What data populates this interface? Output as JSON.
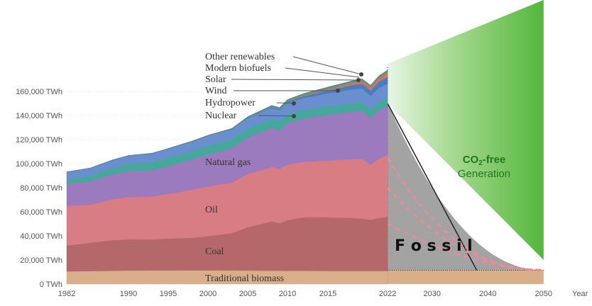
{
  "chart_data": {
    "type": "area",
    "xlabel": "Year",
    "ylim": [
      0,
      180000
    ],
    "y_ticks": [
      {
        "value": 0,
        "label": "0 TWh"
      },
      {
        "value": 20000,
        "label": "20,000 TWh"
      },
      {
        "value": 40000,
        "label": "40,000 TWh"
      },
      {
        "value": 60000,
        "label": "60,000 TWh"
      },
      {
        "value": 80000,
        "label": "80,000 TWh"
      },
      {
        "value": 100000,
        "label": "100,000 TWh"
      },
      {
        "value": 120000,
        "label": "120,000 TWh"
      },
      {
        "value": 140000,
        "label": "140,000 TWh"
      },
      {
        "value": 160000,
        "label": "160,000 TWh"
      }
    ],
    "x_ticks_history": [
      "1982",
      "1990",
      "1995",
      "2000",
      "2005",
      "2010",
      "2015",
      "2022"
    ],
    "x_ticks_future": [
      "2030",
      "2040",
      "2050"
    ],
    "x": [
      1982,
      1985,
      1988,
      1990,
      1993,
      1995,
      1998,
      2000,
      2003,
      2005,
      2008,
      2009,
      2010,
      2012,
      2015,
      2018,
      2019,
      2020,
      2021,
      2022
    ],
    "series": [
      {
        "name": "Traditional biomass",
        "values": [
          10500,
          10800,
          11000,
          11200,
          11300,
          11300,
          11400,
          11400,
          11300,
          11200,
          11100,
          11100,
          11000,
          11000,
          10900,
          10900,
          10900,
          10900,
          10900,
          10900
        ]
      },
      {
        "name": "Coal",
        "values": [
          21500,
          23500,
          25500,
          26000,
          25800,
          26500,
          27000,
          28500,
          31000,
          36000,
          41000,
          39500,
          42000,
          44500,
          44500,
          44000,
          43500,
          42500,
          44000,
          45000
        ]
      },
      {
        "name": "Oil",
        "values": [
          33000,
          31500,
          34000,
          35000,
          35500,
          37000,
          40000,
          41000,
          42000,
          44000,
          45000,
          45000,
          46000,
          46000,
          47000,
          49000,
          49500,
          45500,
          49000,
          51500
        ]
      },
      {
        "name": "Natural gas",
        "values": [
          18500,
          19500,
          20500,
          21500,
          22000,
          23000,
          25000,
          26500,
          28500,
          30500,
          32500,
          32000,
          34500,
          36000,
          38000,
          39500,
          40000,
          39000,
          40500,
          40500
        ]
      },
      {
        "name": "Nuclear",
        "values": [
          3500,
          4500,
          5500,
          6000,
          6500,
          7000,
          7000,
          7500,
          7500,
          7500,
          7500,
          7500,
          7500,
          7000,
          7000,
          7000,
          7000,
          6800,
          7000,
          6800
        ]
      },
      {
        "name": "Hydropower",
        "values": [
          6000,
          6300,
          6500,
          6800,
          7200,
          7400,
          7800,
          8000,
          8000,
          8600,
          9200,
          9200,
          9500,
          10000,
          11000,
          11500,
          11500,
          11500,
          11500,
          11700
        ]
      },
      {
        "name": "Wind",
        "values": [
          0,
          0,
          0,
          0,
          0,
          0,
          0,
          100,
          200,
          300,
          700,
          900,
          1000,
          1500,
          2400,
          3500,
          4000,
          4500,
          5100,
          5700
        ]
      },
      {
        "name": "Solar",
        "values": [
          0,
          0,
          0,
          0,
          0,
          0,
          0,
          0,
          0,
          0,
          50,
          100,
          200,
          500,
          900,
          1600,
          2000,
          2500,
          3000,
          3600
        ]
      },
      {
        "name": "Modern biofuels",
        "values": [
          0,
          0,
          0,
          0,
          100,
          100,
          200,
          200,
          300,
          400,
          700,
          800,
          900,
          1100,
          1200,
          1300,
          1300,
          1200,
          1300,
          1300
        ]
      },
      {
        "name": "Other renewables",
        "values": [
          200,
          250,
          300,
          300,
          350,
          350,
          400,
          400,
          450,
          500,
          550,
          550,
          600,
          650,
          700,
          750,
          750,
          750,
          750,
          800
        ]
      }
    ],
    "colors": {
      "Traditional biomass": "#d9ae8a",
      "Coal": "#b5686a",
      "Oil": "#d97d85",
      "Natural gas": "#9b7bbd",
      "Nuclear": "#45a89b",
      "Hydropower": "#6a8fcf",
      "Wind": "#4a7cc4",
      "Solar": "#d6705e",
      "Modern biofuels": "#62a25f",
      "Other renewables": "#5a7da0",
      "fossil_area": "#a3a3a3",
      "co2_free": "#5bb845",
      "dashes": "#e68d95"
    },
    "labels": {
      "other_renewables": "Other renewables",
      "modern_biofuels": "Modern biofuels",
      "solar": "Solar",
      "wind": "Wind",
      "hydropower": "Hydropower",
      "nuclear": "Nuclear",
      "natural_gas": "Natural gas",
      "oil": "Oil",
      "coal": "Coal",
      "traditional_biomass": "Traditional biomass",
      "fossil": "F o s s i l",
      "co2_free_line1_prefix": "CO",
      "co2_free_line1_sub": "2",
      "co2_free_line1_suffix": "-free",
      "co2_free_line2": "Generation"
    }
  }
}
